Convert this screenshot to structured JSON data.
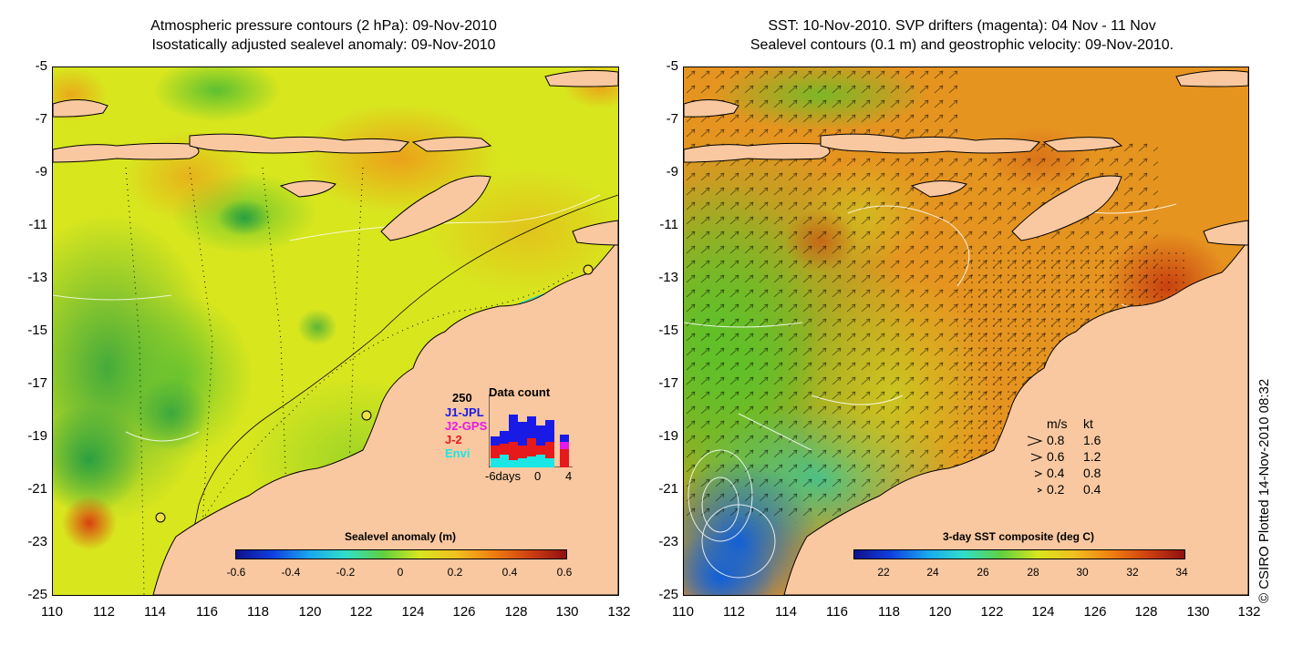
{
  "left_panel": {
    "title_line1": "Atmospheric pressure contours (2 hPa): 09-Nov-2010",
    "title_line2": "Isostatically adjusted sealevel anomaly: 09-Nov-2010",
    "colorbar": {
      "title": "Sealevel anomaly (m)",
      "labels": [
        "-0.6",
        "-0.4",
        "-0.2",
        "0",
        "0.2",
        "0.4",
        "0.6"
      ]
    },
    "inset": {
      "top_value": "250",
      "title": "Data count",
      "x_labels": [
        "-6days",
        "0",
        "4"
      ],
      "series": [
        {
          "name": "J1-JPL",
          "color": "#1a1ae6"
        },
        {
          "name": "J2-GPS",
          "color": "#e61ae6"
        },
        {
          "name": "J-2",
          "color": "#e61a1a"
        },
        {
          "name": "Envi",
          "color": "#1ae6e6"
        }
      ]
    }
  },
  "right_panel": {
    "title_line1": "SST: 10-Nov-2010. SVP drifters (magenta): 04 Nov - 11 Nov",
    "title_line2": "Sealevel contours (0.1 m) and geostrophic velocity: 09-Nov-2010.",
    "colorbar": {
      "title": "3-day SST composite (deg C)",
      "labels": [
        "22",
        "24",
        "26",
        "28",
        "30",
        "32",
        "34"
      ]
    },
    "speed_legend": {
      "header_ms": "m/s",
      "header_kt": "kt",
      "rows": [
        {
          "ms": "0.8",
          "kt": "1.6"
        },
        {
          "ms": "0.6",
          "kt": "1.2"
        },
        {
          "ms": "0.4",
          "kt": "0.8"
        },
        {
          "ms": "0.2",
          "kt": "0.4"
        }
      ]
    }
  },
  "axes": {
    "lat_labels": [
      "-5",
      "-7",
      "-9",
      "-11",
      "-13",
      "-15",
      "-17",
      "-19",
      "-21",
      "-23",
      "-25"
    ],
    "lon_labels": [
      "110",
      "112",
      "114",
      "116",
      "118",
      "120",
      "122",
      "124",
      "126",
      "128",
      "130",
      "132"
    ]
  },
  "credit": "© CSIRO Plotted 14-Nov-2010 08:32",
  "colors": {
    "land": "#f9c8a0",
    "anomaly_base": "#d8e61e",
    "sst_base": "#e69420",
    "coast": "#000000"
  }
}
